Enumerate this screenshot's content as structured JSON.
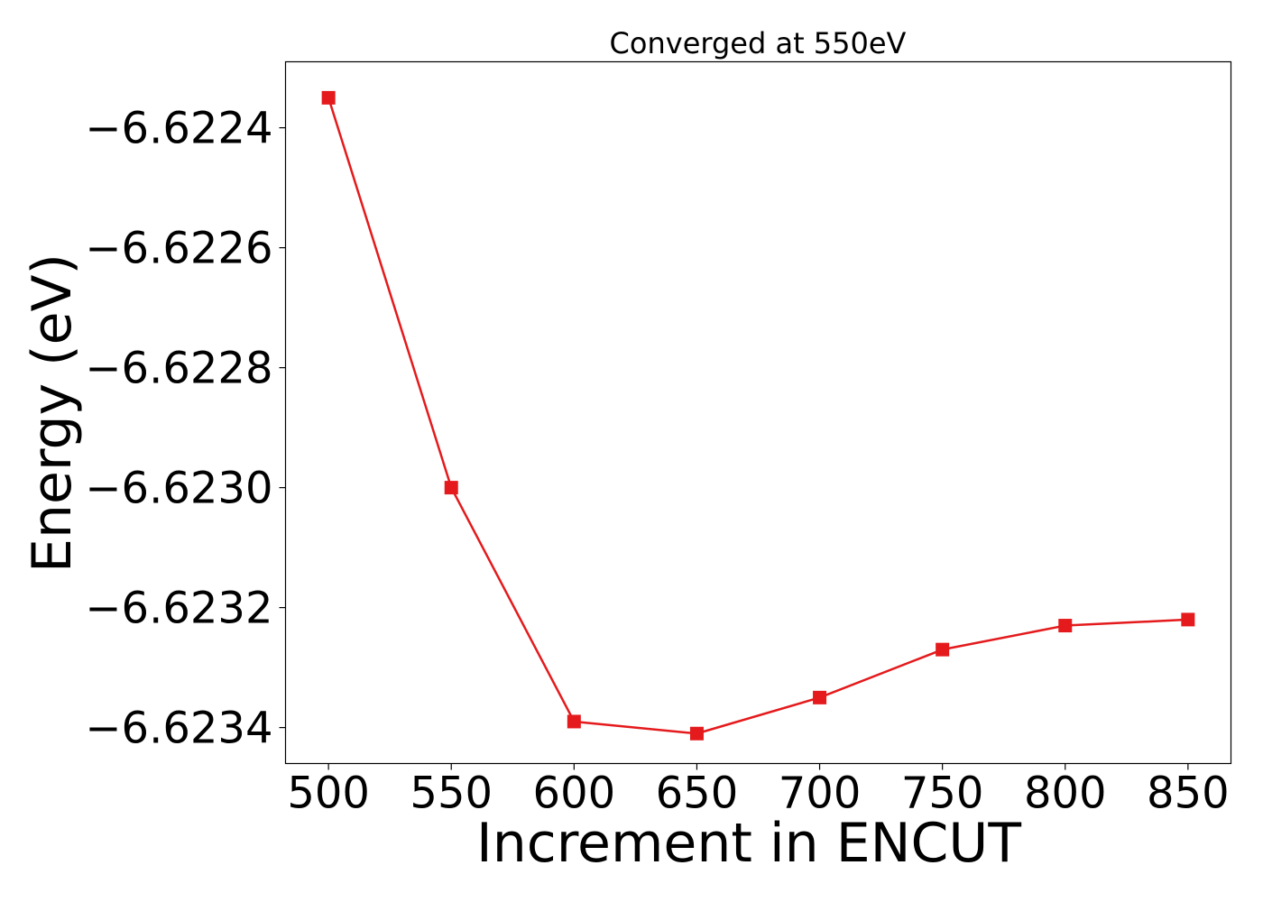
{
  "chart_data": {
    "type": "line",
    "title": "Converged at 550eV",
    "xlabel": "Increment in ENCUT",
    "ylabel": "Energy (eV)",
    "x": [
      500,
      550,
      600,
      650,
      700,
      750,
      800,
      850
    ],
    "series": [
      {
        "values": [
          -6.62235,
          -6.623,
          -6.62339,
          -6.62341,
          -6.62335,
          -6.62327,
          -6.62323,
          -6.62322
        ],
        "color": "#e41a1c",
        "marker": "square"
      }
    ],
    "xticks": [
      500,
      550,
      600,
      650,
      700,
      750,
      800,
      850
    ],
    "xtick_labels": [
      "500",
      "550",
      "600",
      "650",
      "700",
      "750",
      "800",
      "850"
    ],
    "yticks": [
      -6.6224,
      -6.6226,
      -6.6228,
      -6.623,
      -6.6232,
      -6.6234
    ],
    "ytick_labels": [
      "−6.6224",
      "−6.6226",
      "−6.6228",
      "−6.6230",
      "−6.6232",
      "−6.6234"
    ],
    "xlim": [
      482.5,
      867.5
    ],
    "ylim": [
      -6.62346,
      -6.62229
    ],
    "grid": false,
    "legend": "none"
  }
}
